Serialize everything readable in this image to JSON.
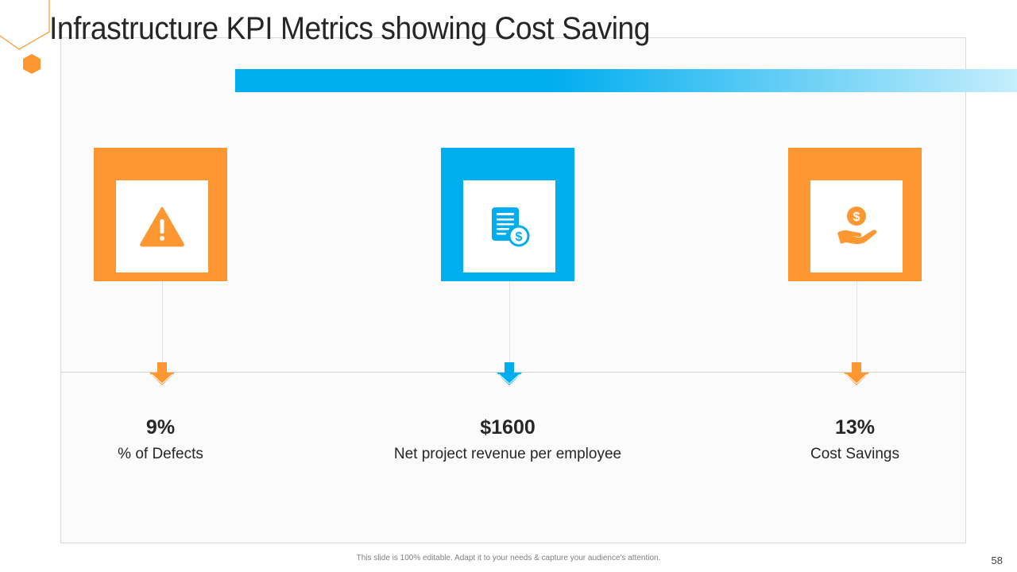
{
  "slide": {
    "title": "Infrastructure KPI Metrics showing Cost Saving",
    "footer_note": "This slide is 100% editable. Adapt it to your needs & capture your audience's attention.",
    "page_number": "58"
  },
  "colors": {
    "orange": "#fd9731",
    "blue": "#00adef",
    "text": "#262626"
  },
  "kpis": [
    {
      "icon": "warning-triangle-icon",
      "color": "#fd9731",
      "value": "9%",
      "label": "% of Defects"
    },
    {
      "icon": "invoice-dollar-icon",
      "color": "#00adef",
      "value": "$1600",
      "label": "Net project revenue per employee"
    },
    {
      "icon": "hand-coin-icon",
      "color": "#fd9731",
      "value": "13%",
      "label": "Cost Savings"
    }
  ]
}
